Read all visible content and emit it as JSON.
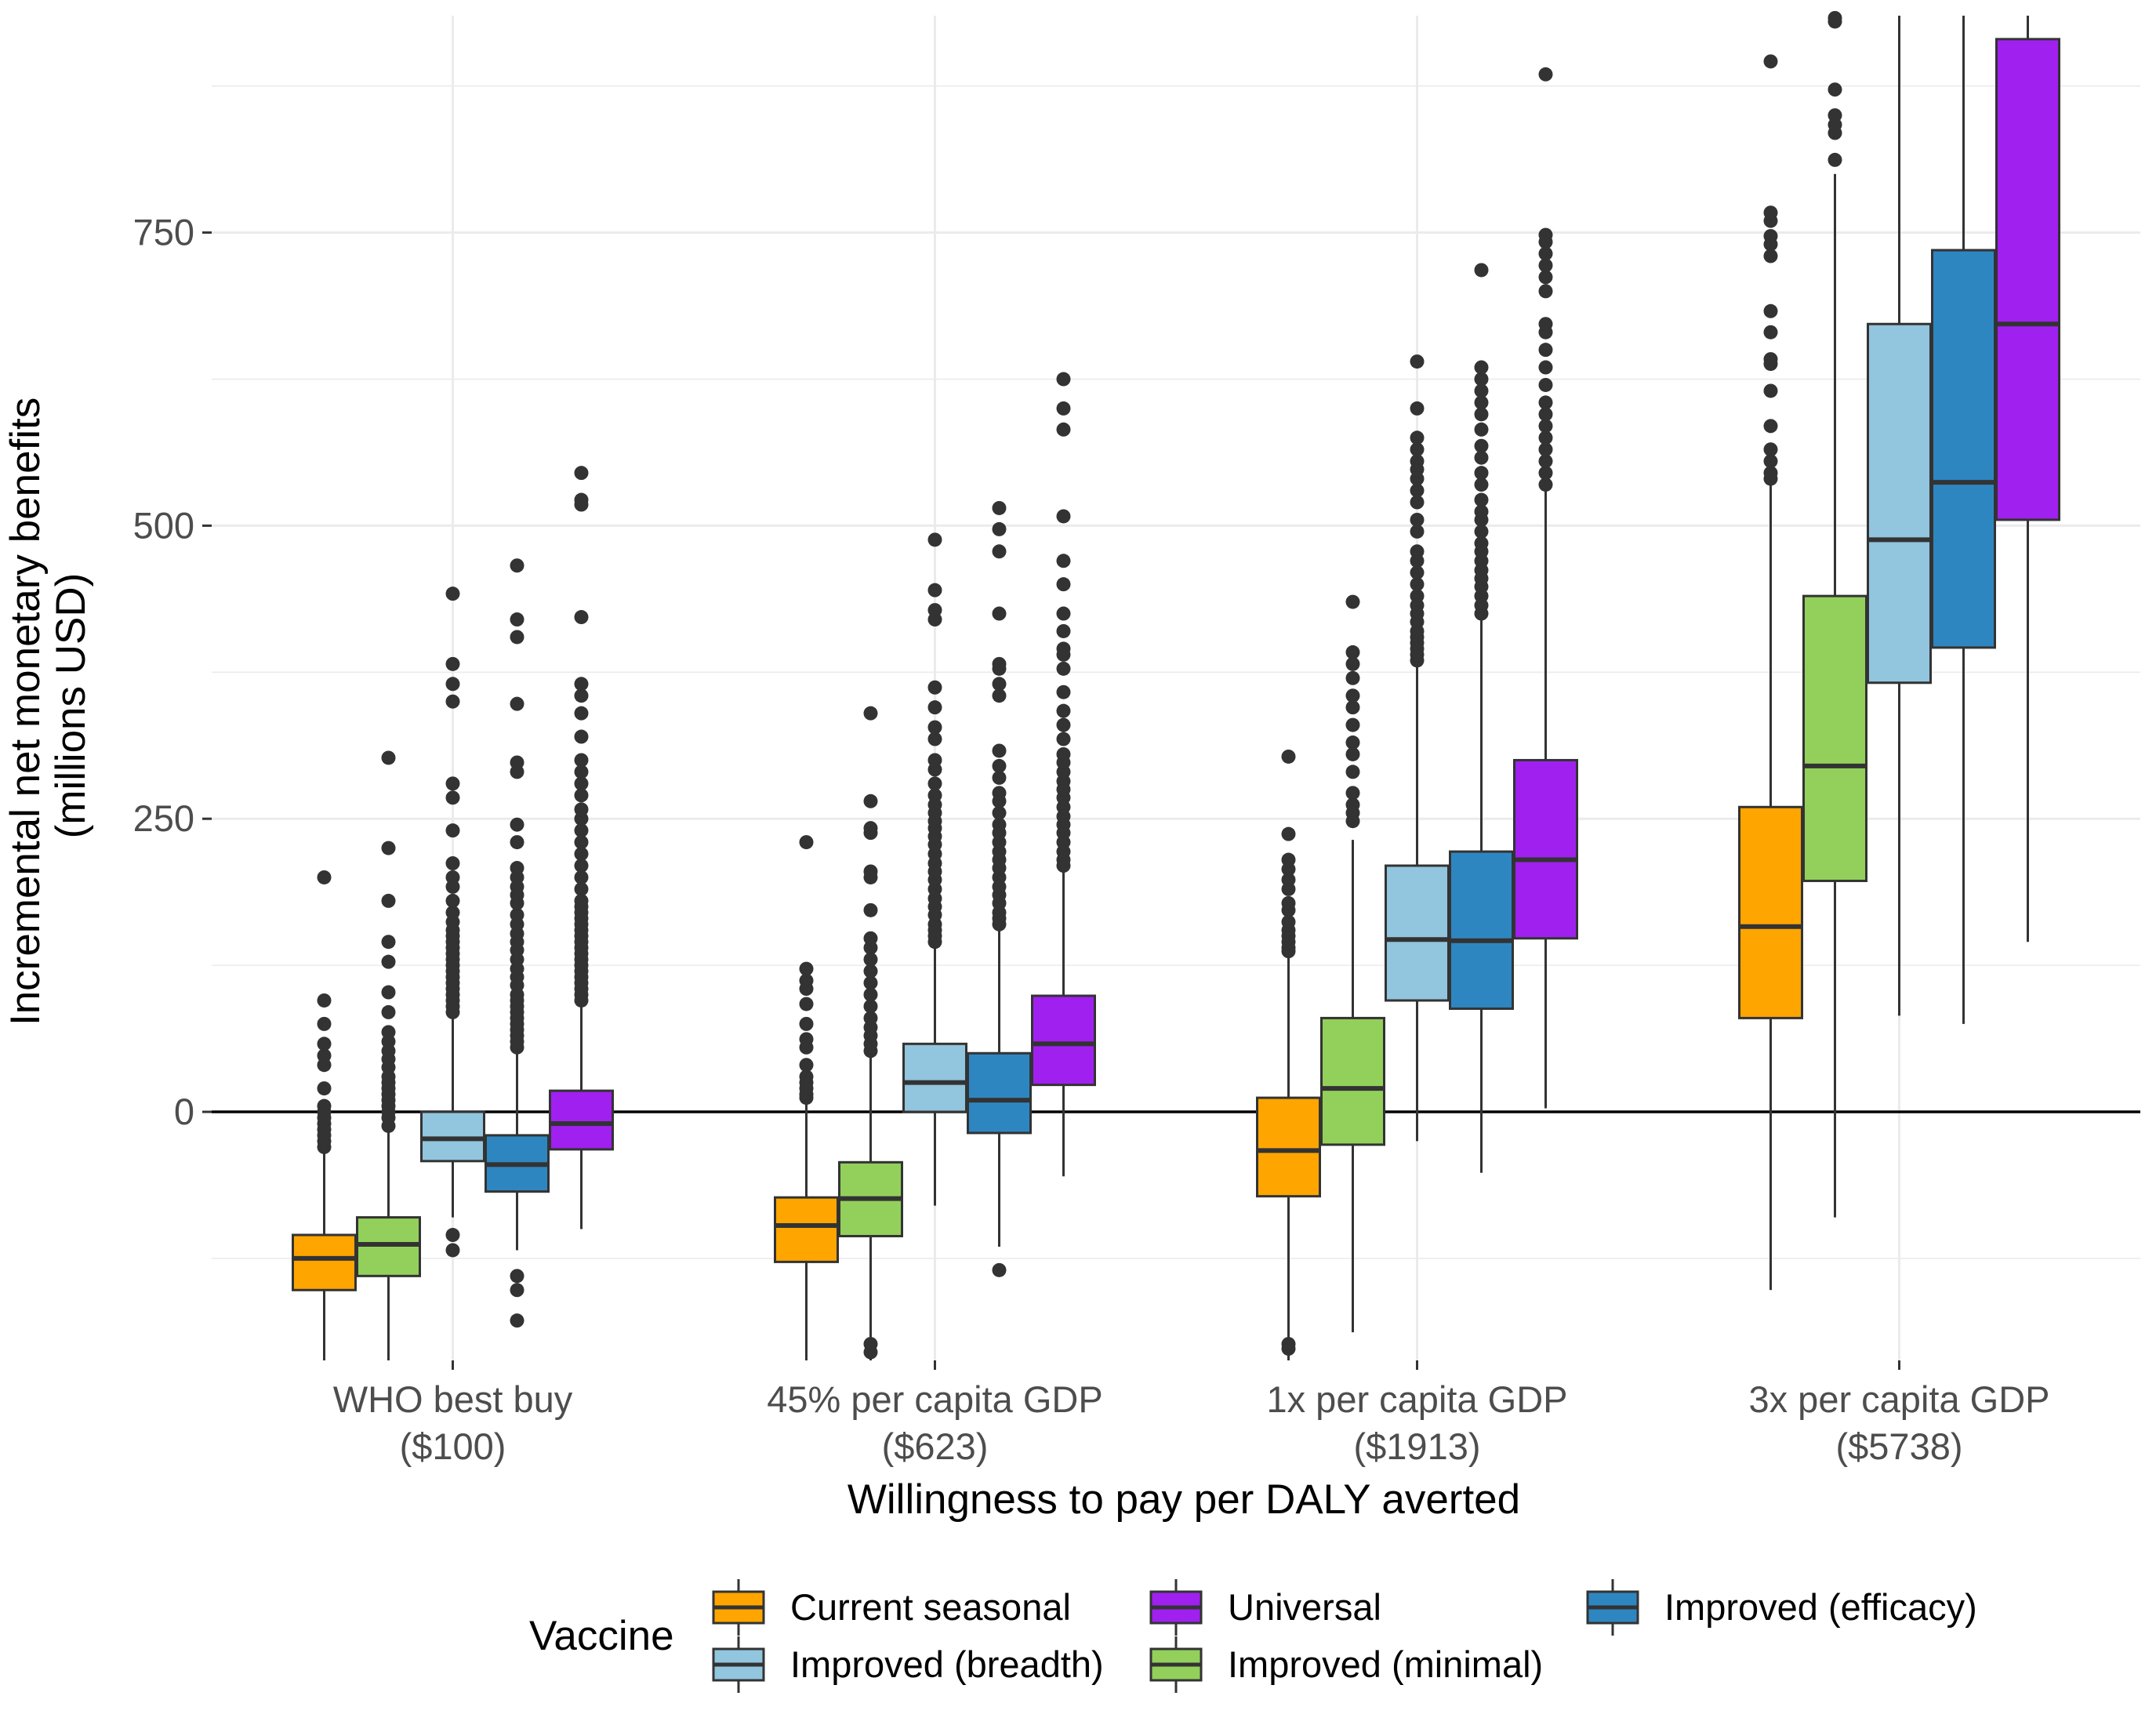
{
  "chart_data": {
    "type": "box",
    "title": "",
    "xlabel": "Willingness to pay per DALY averted",
    "ylabel_lines": [
      "Incremental net monetary benefits",
      "(millions USD)"
    ],
    "ylim": [
      -212,
      935
    ],
    "yticks": [
      0,
      250,
      500,
      750
    ],
    "ytick_labels": [
      "0",
      "250",
      "500",
      "750"
    ],
    "grid": true,
    "reference_line_y": 0,
    "categories": [
      [
        "WHO best buy",
        "($100)"
      ],
      [
        "45% per capita GDP",
        "($623)"
      ],
      [
        "1x per capita GDP",
        "($1913)"
      ],
      [
        "3x per capita GDP",
        "($5738)"
      ]
    ],
    "legend": {
      "title": "Vaccine",
      "position": "bottom",
      "items_order": [
        0,
        2,
        4,
        1,
        3
      ]
    },
    "series": [
      {
        "name": "Current seasonal",
        "color": "#FFA500",
        "boxes": [
          {
            "lower_whisker": -212,
            "q1": -152,
            "median": -125,
            "q3": -105,
            "upper_whisker": -35,
            "outliers": [
              -30,
              -25,
              -20,
              -15,
              -10,
              -5,
              0,
              5,
              20,
              40,
              48,
              58,
              75,
              95,
              200
            ]
          },
          {
            "lower_whisker": -212,
            "q1": -128,
            "median": -97,
            "q3": -73,
            "upper_whisker": 10,
            "outliers": [
              12,
              15,
              20,
              25,
              30,
              40,
              55,
              62,
              75,
              92,
              105,
              112,
              122,
              230
            ]
          },
          {
            "lower_whisker": -212,
            "q1": -72,
            "median": -33,
            "q3": 12,
            "upper_whisker": 135,
            "outliers": [
              137,
              140,
              145,
              150,
              155,
              162,
              172,
              178,
              190,
              198,
              207,
              215,
              237,
              303,
              -198,
              -202
            ]
          },
          {
            "lower_whisker": -152,
            "q1": 80,
            "median": 158,
            "q3": 260,
            "upper_whisker": 535,
            "outliers": [
              540,
              545,
              555,
              565,
              585,
              615,
              638,
              642,
              665,
              683,
              730,
              740,
              747,
              760,
              767,
              896
            ]
          }
        ]
      },
      {
        "name": "Improved (minimal)",
        "color": "#92D05B",
        "boxes": [
          {
            "lower_whisker": -212,
            "q1": -140,
            "median": -113,
            "q3": -90,
            "upper_whisker": -15,
            "outliers": [
              -12,
              -5,
              0,
              5,
              10,
              15,
              20,
              25,
              30,
              38,
              45,
              52,
              60,
              68,
              85,
              102,
              128,
              145,
              180,
              225,
              302
            ]
          },
          {
            "lower_whisker": -212,
            "q1": -106,
            "median": -74,
            "q3": -43,
            "upper_whisker": 48,
            "outliers": [
              52,
              58,
              65,
              72,
              80,
              90,
              100,
              110,
              120,
              130,
              140,
              148,
              172,
              200,
              205,
              238,
              242,
              265,
              340,
              -205,
              -198
            ]
          },
          {
            "lower_whisker": -188,
            "q1": -28,
            "median": 20,
            "q3": 80,
            "upper_whisker": 232,
            "outliers": [
              248,
              255,
              262,
              272,
              290,
              305,
              315,
              330,
              345,
              355,
              370,
              382,
              392,
              435
            ]
          },
          {
            "lower_whisker": -90,
            "q1": 197,
            "median": 295,
            "q3": 440,
            "upper_whisker": 800,
            "outliers": [
              812,
              835,
              842,
              850,
              872,
              930,
              933
            ]
          }
        ]
      },
      {
        "name": "Improved (breadth)",
        "color": "#92C5DE",
        "boxes": [
          {
            "lower_whisker": -90,
            "q1": -42,
            "median": -23,
            "q3": 0,
            "upper_whisker": 80,
            "outliers": [
              85,
              90,
              95,
              100,
              105,
              110,
              115,
              120,
              125,
              130,
              135,
              140,
              145,
              150,
              155,
              162,
              170,
              180,
              192,
              200,
              212,
              240,
              268,
              280,
              350,
              365,
              382,
              442,
              -105,
              -118
            ]
          },
          {
            "lower_whisker": -80,
            "q1": 0,
            "median": 25,
            "q3": 58,
            "upper_whisker": 140,
            "outliers": [
              145,
              150,
              155,
              160,
              168,
              175,
              182,
              190,
              198,
              205,
              212,
              220,
              228,
              235,
              242,
              248,
              255,
              262,
              270,
              280,
              292,
              300,
              318,
              328,
              345,
              362,
              420,
              428,
              445,
              488
            ]
          },
          {
            "lower_whisker": -25,
            "q1": 95,
            "median": 147,
            "q3": 210,
            "upper_whisker": 380,
            "outliers": [
              385,
              390,
              395,
              400,
              405,
              410,
              418,
              425,
              432,
              440,
              450,
              460,
              470,
              478,
              495,
              505,
              520,
              530,
              540,
              548,
              555,
              565,
              575,
              600,
              640
            ]
          },
          {
            "lower_whisker": 82,
            "q1": 366,
            "median": 488,
            "q3": 672,
            "upper_whisker": 935,
            "outliers": []
          }
        ]
      },
      {
        "name": "Improved (efficacy)",
        "color": "#2E86C1",
        "boxes": [
          {
            "lower_whisker": -118,
            "q1": -68,
            "median": -45,
            "q3": -20,
            "upper_whisker": 50,
            "outliers": [
              55,
              60,
              65,
              70,
              75,
              80,
              85,
              90,
              95,
              100,
              108,
              115,
              122,
              130,
              138,
              145,
              152,
              160,
              168,
              178,
              185,
              192,
              200,
              208,
              230,
              245,
              290,
              298,
              348,
              405,
              420,
              466,
              -140,
              -152,
              -178
            ]
          },
          {
            "lower_whisker": -115,
            "q1": -18,
            "median": 10,
            "q3": 50,
            "upper_whisker": 155,
            "outliers": [
              160,
              165,
              170,
              178,
              185,
              192,
              200,
              208,
              215,
              222,
              230,
              238,
              245,
              255,
              265,
              272,
              285,
              295,
              308,
              355,
              365,
              378,
              382,
              425,
              478,
              497,
              515,
              -135
            ]
          },
          {
            "lower_whisker": -52,
            "q1": 88,
            "median": 146,
            "q3": 222,
            "upper_whisker": 420,
            "outliers": [
              425,
              432,
              440,
              448,
              455,
              462,
              470,
              478,
              485,
              495,
              505,
              512,
              522,
              535,
              545,
              558,
              568,
              582,
              595,
              605,
              615,
              625,
              635,
              718
            ]
          },
          {
            "lower_whisker": 75,
            "q1": 396,
            "median": 537,
            "q3": 735,
            "upper_whisker": 935,
            "outliers": []
          }
        ]
      },
      {
        "name": "Universal",
        "color": "#A020F0",
        "boxes": [
          {
            "lower_whisker": -100,
            "q1": -32,
            "median": -10,
            "q3": 18,
            "upper_whisker": 92,
            "outliers": [
              95,
              100,
              105,
              110,
              115,
              120,
              125,
              130,
              135,
              140,
              145,
              150,
              155,
              160,
              165,
              170,
              175,
              180,
              190,
              200,
              210,
              220,
              230,
              240,
              250,
              258,
              270,
              280,
              290,
              300,
              320,
              340,
              355,
              365,
              422,
              518,
              522,
              545
            ]
          },
          {
            "lower_whisker": -55,
            "q1": 23,
            "median": 58,
            "q3": 99,
            "upper_whisker": 205,
            "outliers": [
              210,
              215,
              222,
              230,
              238,
              245,
              252,
              260,
              268,
              275,
              282,
              290,
              298,
              305,
              318,
              330,
              342,
              358,
              378,
              390,
              395,
              410,
              425,
              450,
              470,
              508,
              582,
              600,
              625
            ]
          },
          {
            "lower_whisker": 3,
            "q1": 148,
            "median": 215,
            "q3": 300,
            "upper_whisker": 530,
            "outliers": [
              535,
              545,
              555,
              565,
              575,
              585,
              595,
              605,
              620,
              635,
              650,
              665,
              672,
              700,
              712,
              722,
              732,
              742,
              748,
              885
            ]
          },
          {
            "lower_whisker": 145,
            "q1": 505,
            "median": 672,
            "q3": 915,
            "upper_whisker": 935,
            "outliers": []
          }
        ]
      }
    ]
  }
}
